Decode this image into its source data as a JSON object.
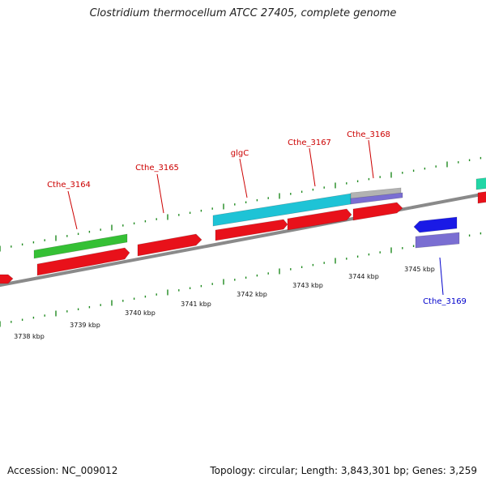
{
  "title": "Clostridium thermocellum ATCC 27405, complete genome",
  "footer": {
    "accession": "Accession: NC_009012",
    "summary": "Topology: circular; Length: 3,843,301 bp; Genes: 3,259"
  },
  "colors": {
    "backbone": "#8a8a8a",
    "tick": "#1f8a1f",
    "gene_red": "#e8111a",
    "gene_green": "#35c035",
    "gene_cyan": "#1ec3d6",
    "gene_blue": "#1a1ae6",
    "gene_purple": "#7a6ed2",
    "gene_gray": "#b2b2b2",
    "gene_teal": "#22d6a6",
    "label_forward": "#cc0000",
    "label_reverse": "#0000cc"
  },
  "scale_labels": [
    "3738 kbp",
    "3739 kbp",
    "3740 kbp",
    "3741 kbp",
    "3742 kbp",
    "3743 kbp",
    "3744 kbp",
    "3745 kbp"
  ],
  "gene_labels": [
    {
      "name": "Cthe_3164",
      "strand": "forward"
    },
    {
      "name": "Cthe_3165",
      "strand": "forward"
    },
    {
      "name": "glgC",
      "strand": "forward"
    },
    {
      "name": "Cthe_3167",
      "strand": "forward"
    },
    {
      "name": "Cthe_3168",
      "strand": "forward"
    },
    {
      "name": "Cthe_3169",
      "strand": "reverse"
    }
  ]
}
